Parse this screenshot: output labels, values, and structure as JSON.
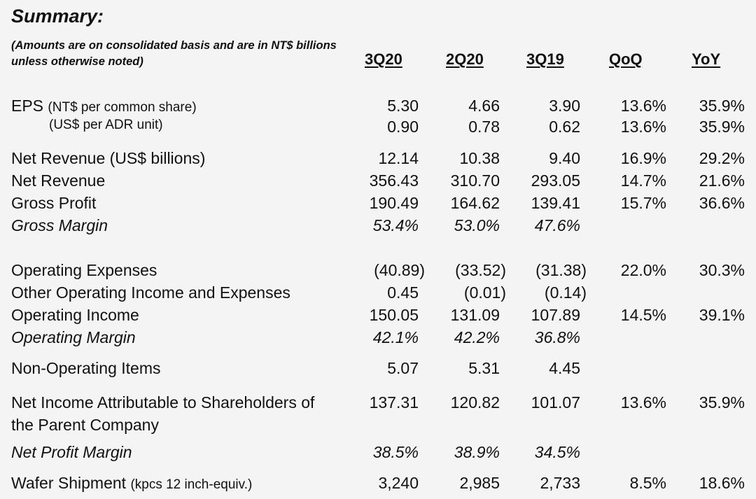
{
  "title": "Summary:",
  "note": "(Amounts are on consolidated basis and are in NT$ billions unless otherwise noted)",
  "columns": [
    "3Q20",
    "2Q20",
    "3Q19",
    "QoQ",
    "YoY"
  ],
  "rows": [
    {
      "label": "EPS",
      "sub": "(NT$ per common share)",
      "values": [
        "5.30",
        "4.66",
        "3.90",
        "13.6%",
        "35.9%"
      ]
    },
    {
      "label": "(US$ per ADR unit)",
      "values": [
        "0.90",
        "0.78",
        "0.62",
        "13.6%",
        "35.9%"
      ]
    },
    {
      "label": "Net Revenue (US$ billions)",
      "values": [
        "12.14",
        "10.38",
        "9.40",
        "16.9%",
        "29.2%"
      ]
    },
    {
      "label": "Net Revenue",
      "values": [
        "356.43",
        "310.70",
        "293.05",
        "14.7%",
        "21.6%"
      ]
    },
    {
      "label": "Gross Profit",
      "values": [
        "190.49",
        "164.62",
        "139.41",
        "15.7%",
        "36.6%"
      ]
    },
    {
      "label": "Gross Margin",
      "values": [
        "53.4%",
        "53.0%",
        "47.6%",
        "",
        ""
      ]
    },
    {
      "label": "Operating Expenses",
      "values": [
        "(40.89)",
        "(33.52)",
        "(31.38)",
        "22.0%",
        "30.3%"
      ]
    },
    {
      "label": "Other Operating Income and Expenses",
      "values": [
        "0.45",
        "(0.01)",
        "(0.14)",
        "",
        ""
      ]
    },
    {
      "label": "Operating Income",
      "values": [
        "150.05",
        "131.09",
        "107.89",
        "14.5%",
        "39.1%"
      ]
    },
    {
      "label": "Operating Margin",
      "values": [
        "42.1%",
        "42.2%",
        "36.8%",
        "",
        ""
      ]
    },
    {
      "label": "Non-Operating Items",
      "values": [
        "5.07",
        "5.31",
        "4.45",
        "",
        ""
      ]
    },
    {
      "label": "Net Income Attributable to Shareholders of",
      "label2": "the Parent Company",
      "values": [
        "137.31",
        "120.82",
        "101.07",
        "13.6%",
        "35.9%"
      ]
    },
    {
      "label": "Net Profit Margin",
      "values": [
        "38.5%",
        "38.9%",
        "34.5%",
        "",
        ""
      ]
    },
    {
      "label": "Wafer Shipment",
      "sub": "(kpcs 12 inch-equiv.)",
      "values": [
        "3,240",
        "2,985",
        "2,733",
        "8.5%",
        "18.6%"
      ]
    }
  ]
}
